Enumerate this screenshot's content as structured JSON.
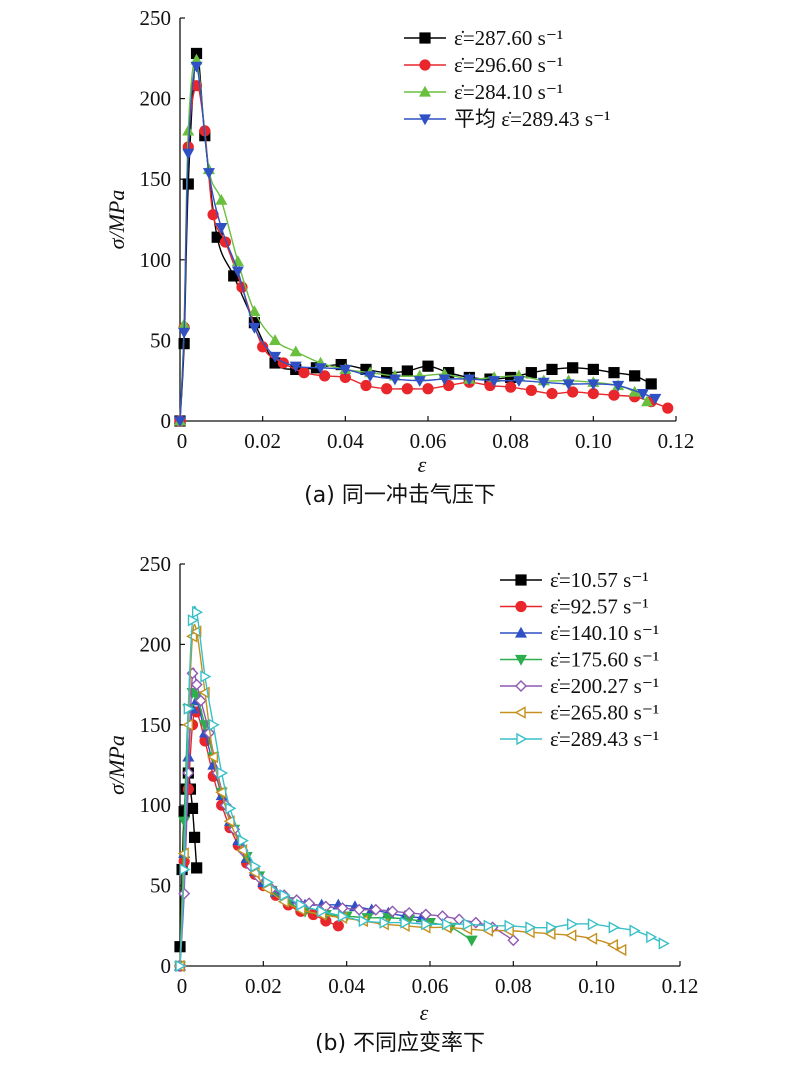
{
  "charts": [
    {
      "caption": "(a) 同一冲击气压下",
      "xlabel": "ε",
      "ylabel": "σ/MPa",
      "xlim": [
        0,
        0.12
      ],
      "ylim": [
        0,
        250
      ],
      "xticks": [
        "0",
        "0.02",
        "0.04",
        "0.06",
        "0.08",
        "0.10",
        "0.12"
      ],
      "yticks": [
        "0",
        "50",
        "100",
        "150",
        "200",
        "250"
      ],
      "legend_position": "top-right",
      "series": [
        {
          "name": "ε̇=287.60 s⁻¹",
          "color": "#000000",
          "marker": "square-filled",
          "x": [
            0,
            0.001,
            0.002,
            0.004,
            0.006,
            0.009,
            0.013,
            0.018,
            0.023,
            0.028,
            0.033,
            0.039,
            0.045,
            0.05,
            0.055,
            0.06,
            0.065,
            0.07,
            0.075,
            0.08,
            0.085,
            0.09,
            0.095,
            0.1,
            0.105,
            0.11,
            0.114
          ],
          "y": [
            0,
            48,
            147,
            228,
            177,
            114,
            90,
            61,
            36,
            32,
            33,
            35,
            32,
            30,
            31,
            34,
            30,
            27,
            26,
            27,
            30,
            32,
            33,
            32,
            30,
            28,
            23
          ]
        },
        {
          "name": "ε̇=296.60 s⁻¹",
          "color": "#e8262b",
          "marker": "circle-filled",
          "x": [
            0,
            0.001,
            0.002,
            0.004,
            0.006,
            0.008,
            0.011,
            0.015,
            0.02,
            0.025,
            0.03,
            0.035,
            0.04,
            0.045,
            0.05,
            0.055,
            0.06,
            0.065,
            0.07,
            0.075,
            0.08,
            0.085,
            0.09,
            0.095,
            0.1,
            0.105,
            0.11,
            0.114,
            0.118
          ],
          "y": [
            0,
            58,
            170,
            208,
            180,
            128,
            111,
            83,
            46,
            36,
            30,
            28,
            27,
            22,
            20,
            20,
            20,
            22,
            24,
            22,
            21,
            19,
            17,
            18,
            17,
            16,
            15,
            12,
            8
          ]
        },
        {
          "name": "ε̇=284.10 s⁻¹",
          "color": "#6abf3f",
          "marker": "triangle-up-filled",
          "x": [
            0,
            0.001,
            0.002,
            0.004,
            0.007,
            0.01,
            0.014,
            0.018,
            0.023,
            0.028,
            0.034,
            0.04,
            0.046,
            0.052,
            0.058,
            0.064,
            0.07,
            0.076,
            0.082,
            0.088,
            0.094,
            0.1,
            0.106,
            0.11,
            0.113
          ],
          "y": [
            0,
            60,
            180,
            224,
            156,
            137,
            99,
            68,
            50,
            43,
            36,
            32,
            30,
            28,
            28,
            29,
            26,
            27,
            28,
            25,
            25,
            24,
            22,
            18,
            12
          ]
        },
        {
          "name": "平均 ε̇=289.43 s⁻¹",
          "color": "#2f51c4",
          "marker": "triangle-down-filled",
          "x": [
            0,
            0.001,
            0.002,
            0.004,
            0.007,
            0.01,
            0.014,
            0.018,
            0.023,
            0.028,
            0.034,
            0.04,
            0.046,
            0.052,
            0.058,
            0.064,
            0.07,
            0.076,
            0.082,
            0.088,
            0.094,
            0.1,
            0.106,
            0.112,
            0.115
          ],
          "y": [
            0,
            55,
            166,
            220,
            154,
            120,
            93,
            58,
            40,
            34,
            33,
            32,
            28,
            26,
            25,
            26,
            26,
            25,
            25,
            24,
            23,
            23,
            22,
            17,
            14
          ]
        }
      ]
    },
    {
      "caption": "(b) 不同应变率下",
      "xlabel": "ε",
      "ylabel": "σ/MPa",
      "xlim": [
        0,
        0.12
      ],
      "ylim": [
        0,
        250
      ],
      "xticks": [
        "0",
        "0.02",
        "0.04",
        "0.06",
        "0.08",
        "0.10",
        "0.12"
      ],
      "yticks": [
        "0",
        "50",
        "100",
        "150",
        "200",
        "250"
      ],
      "legend_position": "top-right",
      "series": [
        {
          "name": "ε̇=10.57 s⁻¹",
          "color": "#000000",
          "marker": "square-filled",
          "x": [
            0,
            0.0005,
            0.001,
            0.0015,
            0.002,
            0.0025,
            0.003,
            0.0035,
            0.004
          ],
          "y": [
            12,
            60,
            96,
            110,
            120,
            110,
            98,
            80,
            61
          ]
        },
        {
          "name": "ε̇=92.57 s⁻¹",
          "color": "#e8262b",
          "marker": "circle-filled",
          "x": [
            0,
            0.001,
            0.002,
            0.003,
            0.004,
            0.006,
            0.008,
            0.01,
            0.012,
            0.014,
            0.016,
            0.018,
            0.02,
            0.023,
            0.026,
            0.029,
            0.032,
            0.035,
            0.038
          ],
          "y": [
            0,
            65,
            110,
            150,
            158,
            140,
            118,
            100,
            86,
            75,
            64,
            57,
            50,
            44,
            38,
            34,
            32,
            28,
            25
          ]
        },
        {
          "name": "ε̇=140.10 s⁻¹",
          "color": "#2f51c4",
          "marker": "triangle-up-filled",
          "x": [
            0,
            0.001,
            0.002,
            0.003,
            0.004,
            0.006,
            0.008,
            0.01,
            0.012,
            0.014,
            0.016,
            0.018,
            0.02,
            0.023,
            0.026,
            0.03,
            0.034,
            0.038,
            0.042,
            0.046,
            0.05,
            0.054,
            0.058
          ],
          "y": [
            0,
            70,
            130,
            160,
            165,
            145,
            125,
            106,
            90,
            78,
            67,
            59,
            52,
            46,
            41,
            38,
            38,
            38,
            37,
            35,
            33,
            31,
            30
          ]
        },
        {
          "name": "ε̇=175.60 s⁻¹",
          "color": "#2cae4f",
          "marker": "triangle-down-filled",
          "x": [
            0,
            0.001,
            0.002,
            0.003,
            0.004,
            0.006,
            0.008,
            0.01,
            0.013,
            0.016,
            0.019,
            0.022,
            0.026,
            0.03,
            0.035,
            0.04,
            0.045,
            0.05,
            0.055,
            0.06,
            0.065,
            0.07
          ],
          "y": [
            0,
            90,
            160,
            170,
            168,
            150,
            130,
            108,
            85,
            68,
            56,
            47,
            40,
            34,
            32,
            31,
            30,
            30,
            29,
            27,
            24,
            16
          ]
        },
        {
          "name": "ε̇=200.27 s⁻¹",
          "color": "#8e59b3",
          "marker": "diamond-open",
          "x": [
            0,
            0.001,
            0.002,
            0.003,
            0.004,
            0.005,
            0.007,
            0.009,
            0.011,
            0.013,
            0.015,
            0.017,
            0.019,
            0.022,
            0.025,
            0.028,
            0.031,
            0.035,
            0.039,
            0.043,
            0.047,
            0.051,
            0.055,
            0.059,
            0.063,
            0.067,
            0.071,
            0.075,
            0.08
          ],
          "y": [
            0,
            45,
            120,
            182,
            175,
            165,
            145,
            120,
            100,
            85,
            72,
            62,
            55,
            48,
            44,
            41,
            39,
            37,
            36,
            35,
            35,
            34,
            33,
            32,
            31,
            29,
            27,
            24,
            16
          ]
        },
        {
          "name": "ε̇=265.80 s⁻¹",
          "color": "#c6901e",
          "marker": "triangle-left-open",
          "x": [
            0,
            0.001,
            0.002,
            0.003,
            0.004,
            0.006,
            0.008,
            0.01,
            0.012,
            0.015,
            0.018,
            0.021,
            0.025,
            0.029,
            0.034,
            0.039,
            0.044,
            0.049,
            0.054,
            0.059,
            0.064,
            0.069,
            0.074,
            0.079,
            0.084,
            0.089,
            0.094,
            0.099,
            0.104,
            0.106
          ],
          "y": [
            0,
            70,
            150,
            205,
            208,
            170,
            130,
            108,
            90,
            72,
            58,
            48,
            40,
            35,
            32,
            30,
            28,
            26,
            25,
            24,
            24,
            23,
            22,
            22,
            21,
            20,
            19,
            17,
            13,
            10
          ]
        },
        {
          "name": "ε̇=289.43 s⁻¹",
          "color": "#38c0c8",
          "marker": "triangle-right-open",
          "x": [
            0,
            0.001,
            0.002,
            0.003,
            0.004,
            0.006,
            0.008,
            0.01,
            0.012,
            0.015,
            0.018,
            0.021,
            0.025,
            0.029,
            0.034,
            0.039,
            0.044,
            0.049,
            0.054,
            0.059,
            0.064,
            0.069,
            0.074,
            0.079,
            0.084,
            0.089,
            0.094,
            0.099,
            0.104,
            0.109,
            0.113,
            0.116
          ],
          "y": [
            0,
            60,
            160,
            215,
            220,
            180,
            150,
            120,
            98,
            78,
            62,
            52,
            44,
            38,
            34,
            31,
            28,
            27,
            27,
            26,
            26,
            26,
            25,
            25,
            24,
            24,
            26,
            26,
            24,
            22,
            18,
            14
          ]
        }
      ]
    }
  ]
}
